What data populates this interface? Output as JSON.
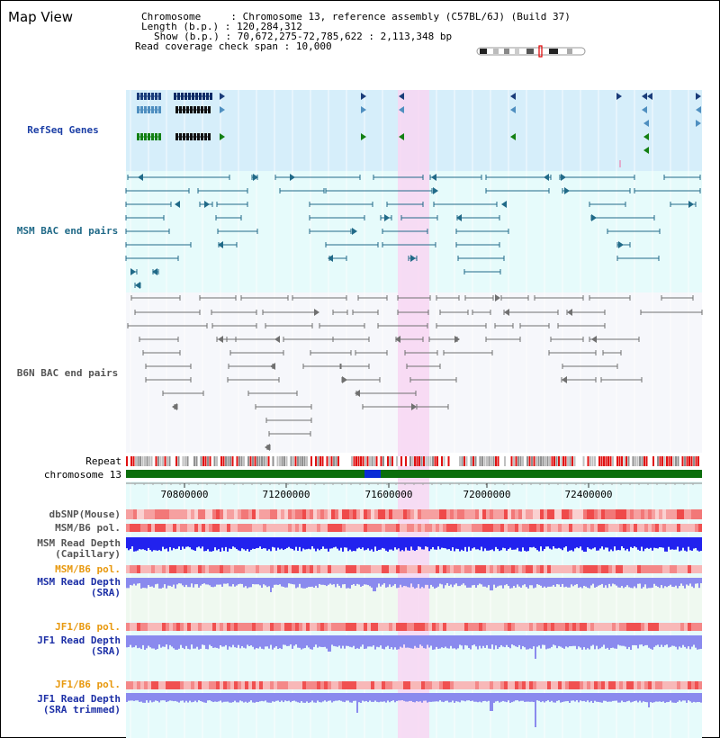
{
  "header": {
    "title": "Map View",
    "chromosome_label": "Chromosome",
    "chromosome_value": "Chromosome 13, reference assembly (C57BL/6J) (Build 37)",
    "length_label": "Length (b.p.)",
    "length_value": "120,284,312",
    "show_label": "Show (b.p.)",
    "show_value": "70,672,275-72,785,622 : 2,113,348 bp",
    "coverage_label": "Read coverage check span",
    "coverage_value": "10,000"
  },
  "tracks": {
    "refseq": "RefSeq Genes",
    "msm_bac": "MSM BAC end pairs",
    "b6n_bac": "B6N BAC end pairs",
    "repeat": "Repeat",
    "chromosome": "chromosome 13",
    "dbsnp": "dbSNP(Mouse)",
    "msm_b6_pol_1": "MSM/B6 pol.",
    "msm_read_depth_cap_1": "MSM Read Depth",
    "msm_read_depth_cap_2": "(Capillary)",
    "msm_b6_pol_2": "MSM/B6 pol.",
    "msm_read_depth_sra_1": "MSM Read Depth",
    "msm_read_depth_sra_2": "(SRA)",
    "jf1_b6_pol_1": "JF1/B6 pol.",
    "jf1_read_depth_sra_1": "JF1 Read Depth",
    "jf1_read_depth_sra_2": "(SRA)",
    "jf1_b6_pol_2": "JF1/B6 pol.",
    "jf1_read_depth_trim_1": "JF1 Read Depth",
    "jf1_read_depth_trim_2": "(SRA trimmed)"
  },
  "axis": {
    "ticks": [
      "70800000",
      "71200000",
      "71600000",
      "72000000",
      "72400000"
    ]
  },
  "colors": {
    "refseq_bg": "#d6eefa",
    "msm_bg": "#e6fbfb",
    "highlight": "#f8d6f2",
    "chromosome_bar": "#0b6e0b",
    "chromosome_marker": "#0a2cd6",
    "read_depth_capillary": "#2222ee",
    "read_depth_sra": "#8a8aee",
    "pol_red": "#f07070"
  }
}
